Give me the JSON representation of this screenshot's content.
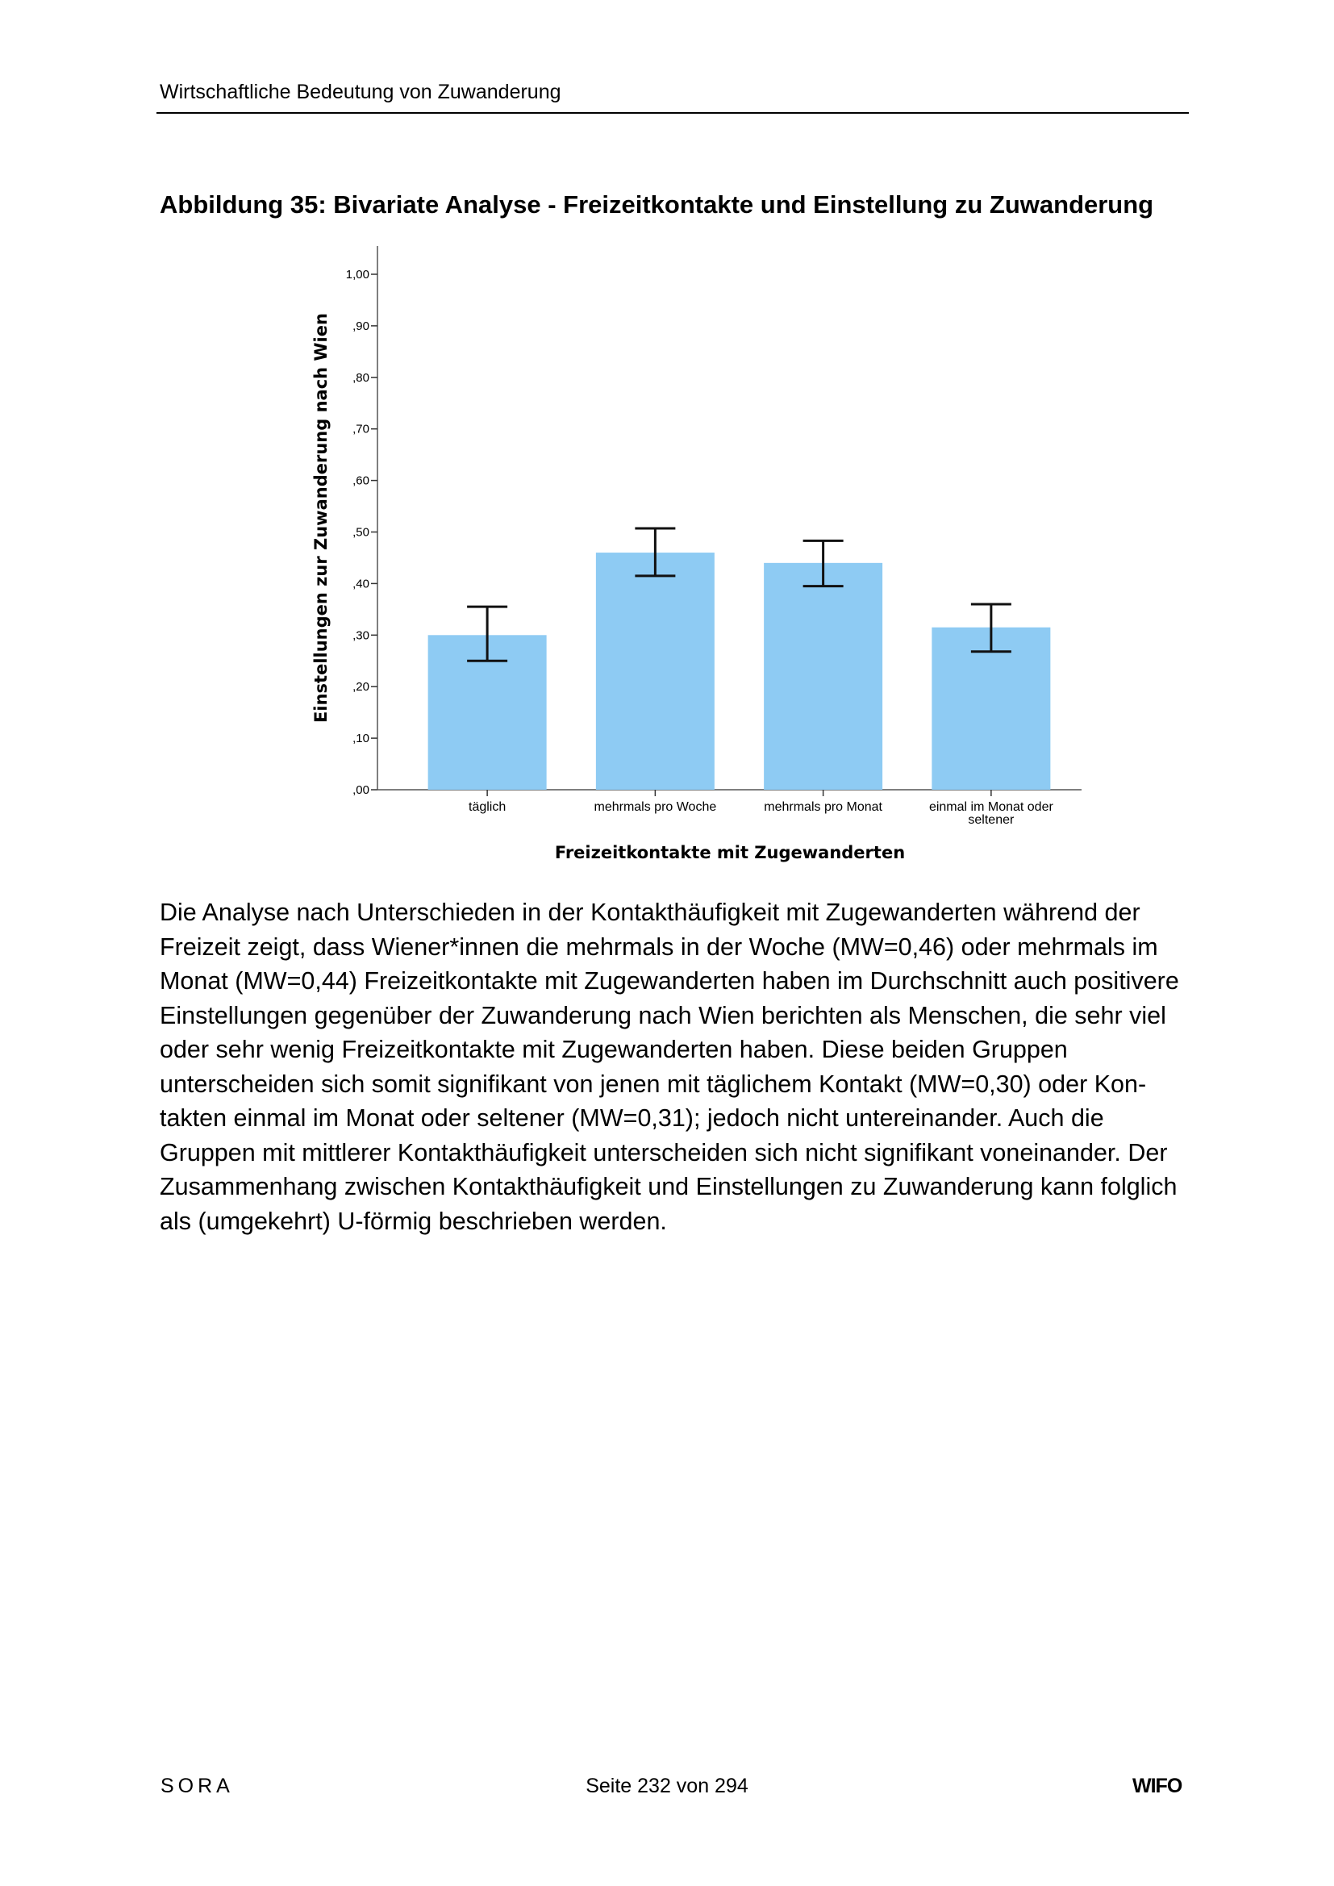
{
  "header": {
    "running_title": "Wirtschaftliche Bedeutung von Zuwanderung"
  },
  "figure": {
    "caption": "Abbildung 35: Bivariate Analyse - Freizeitkontakte und Einstellung zu Zuwanderung"
  },
  "chart_data": {
    "type": "bar",
    "title": "",
    "xlabel": "Freizeitkontakte mit Zugewanderten",
    "ylabel": "Einstellungen zur Zuwanderung nach Wien",
    "categories": [
      "täglich",
      "mehrmals pro Woche",
      "mehrmals pro Monat",
      "einmal im Monat oder seltener"
    ],
    "category_lines": [
      [
        "täglich"
      ],
      [
        "mehrmals pro Woche"
      ],
      [
        "mehrmals pro Monat"
      ],
      [
        "einmal im Monat oder",
        "seltener"
      ]
    ],
    "values": [
      0.3,
      0.46,
      0.44,
      0.315
    ],
    "error_low": [
      0.25,
      0.415,
      0.395,
      0.268
    ],
    "error_high": [
      0.355,
      0.507,
      0.483,
      0.36
    ],
    "ylim": [
      0,
      1.0
    ],
    "yticks": [
      0,
      0.1,
      0.2,
      0.3,
      0.4,
      0.5,
      0.6,
      0.7,
      0.8,
      0.9,
      1.0
    ],
    "ytick_labels": [
      ",00",
      ",10",
      ",20",
      ",30",
      ",40",
      ",50",
      ",60",
      ",70",
      ",80",
      ",90",
      "1,00"
    ],
    "bar_color": "#8ecbf3",
    "grid": false
  },
  "body": {
    "paragraph": "Die Analyse nach Unterschieden in der Kontakthäufigkeit mit Zugewanderten während der Freizeit zeigt, dass Wiener*innen die mehrmals in der Woche (MW=0,46) oder mehrmals im Monat (MW=0,44) Freizeitkontakte mit Zugewanderten haben im Durchschnitt auch positi­vere Einstellungen gegenüber der Zuwanderung nach Wien berichten als Menschen, die sehr viel oder sehr wenig Freizeitkontakte mit Zugewanderten haben. Diese beiden Gruppen unterscheiden sich somit signifikant von jenen mit täglichem Kontakt (MW=0,30) oder Kon­takten einmal im Monat oder seltener (MW=0,31); jedoch nicht untereinander. Auch die Gruppen mit mittlerer Kontakthäufigkeit unterscheiden sich nicht signifikant voneinander. Der Zusammenhang zwischen Kontakthäufigkeit und Einstellungen zu Zuwanderung kann folg­lich als (umgekehrt) U-förmig beschrieben werden."
  },
  "footer": {
    "left": "SORA",
    "center": "Seite 232 von 294",
    "right": "WIFO"
  }
}
